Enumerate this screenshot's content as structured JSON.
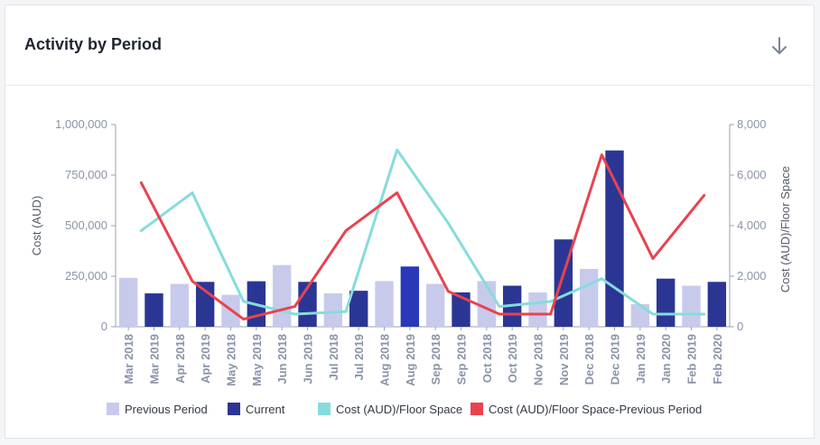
{
  "card": {
    "title": "Activity by Period",
    "download_icon": "arrow-down-icon"
  },
  "chart_data": {
    "type": "bar",
    "categories": [
      "Mar 2018",
      "Mar 2019",
      "Apr 2018",
      "Apr 2019",
      "May 2018",
      "May 2019",
      "Jun 2018",
      "Jun 2019",
      "Jul 2018",
      "Jul 2019",
      "Aug 2018",
      "Aug 2019",
      "Sep 2018",
      "Sep 2019",
      "Oct 2018",
      "Oct 2019",
      "Nov 2018",
      "Nov 2019",
      "Dec 2018",
      "Dec 2019",
      "Jan 2019",
      "Jan 2020",
      "Feb 2019",
      "Feb 2020"
    ],
    "bars": [
      {
        "series": "Previous Period",
        "value": 242000
      },
      {
        "series": "Current",
        "value": 165000
      },
      {
        "series": "Previous Period",
        "value": 212000
      },
      {
        "series": "Current",
        "value": 222000
      },
      {
        "series": "Previous Period",
        "value": 158000
      },
      {
        "series": "Current",
        "value": 225000
      },
      {
        "series": "Previous Period",
        "value": 305000
      },
      {
        "series": "Current",
        "value": 222000
      },
      {
        "series": "Previous Period",
        "value": 165000
      },
      {
        "series": "Current",
        "value": 178000
      },
      {
        "series": "Previous Period",
        "value": 226000
      },
      {
        "series": "Current",
        "value": 298000
      },
      {
        "series": "Previous Period",
        "value": 212000
      },
      {
        "series": "Current",
        "value": 170000
      },
      {
        "series": "Previous Period",
        "value": 226000
      },
      {
        "series": "Current",
        "value": 203000
      },
      {
        "series": "Previous Period",
        "value": 170000
      },
      {
        "series": "Current",
        "value": 432000
      },
      {
        "series": "Previous Period",
        "value": 286000
      },
      {
        "series": "Current",
        "value": 872000
      },
      {
        "series": "Previous Period",
        "value": 112000
      },
      {
        "series": "Current",
        "value": 238000
      },
      {
        "series": "Previous Period",
        "value": 203000
      },
      {
        "series": "Current",
        "value": 222000
      }
    ],
    "highlight_index": 11,
    "lines": [
      {
        "name": "Cost (AUD)/Floor Space",
        "color": "#86dcdc",
        "values": [
          3800,
          5300,
          1000,
          500,
          600,
          7000,
          4100,
          800,
          1000,
          1900,
          500,
          500
        ]
      },
      {
        "name": "Cost (AUD)/Floor Space-Previous Period",
        "color": "#e8434f",
        "values": [
          5700,
          1800,
          300,
          800,
          3800,
          5300,
          1400,
          500,
          500,
          6800,
          2700,
          5200
        ]
      }
    ],
    "yleft": {
      "label": "Cost (AUD)",
      "min": 0,
      "max": 1000000,
      "ticks": [
        "0",
        "250,000",
        "500,000",
        "750,000",
        "1,000,000"
      ]
    },
    "yright": {
      "label": "Cost (AUD)/Floor Space",
      "min": 0,
      "max": 8000,
      "ticks": [
        "0",
        "2,000",
        "4,000",
        "6,000",
        "8,000"
      ]
    },
    "legend": [
      {
        "label": "Previous Period",
        "color": "#c8caec",
        "kind": "box"
      },
      {
        "label": "Current",
        "color": "#2b3694",
        "kind": "box"
      },
      {
        "label": "Cost (AUD)/Floor Space",
        "color": "#86dcdc",
        "kind": "box"
      },
      {
        "label": "Cost (AUD)/Floor Space-Previous Period",
        "color": "#e8434f",
        "kind": "box"
      }
    ],
    "legend_position": "bottom",
    "colors": {
      "previous": "#c8caec",
      "current": "#2b3694",
      "highlight": "#2838b8"
    }
  }
}
